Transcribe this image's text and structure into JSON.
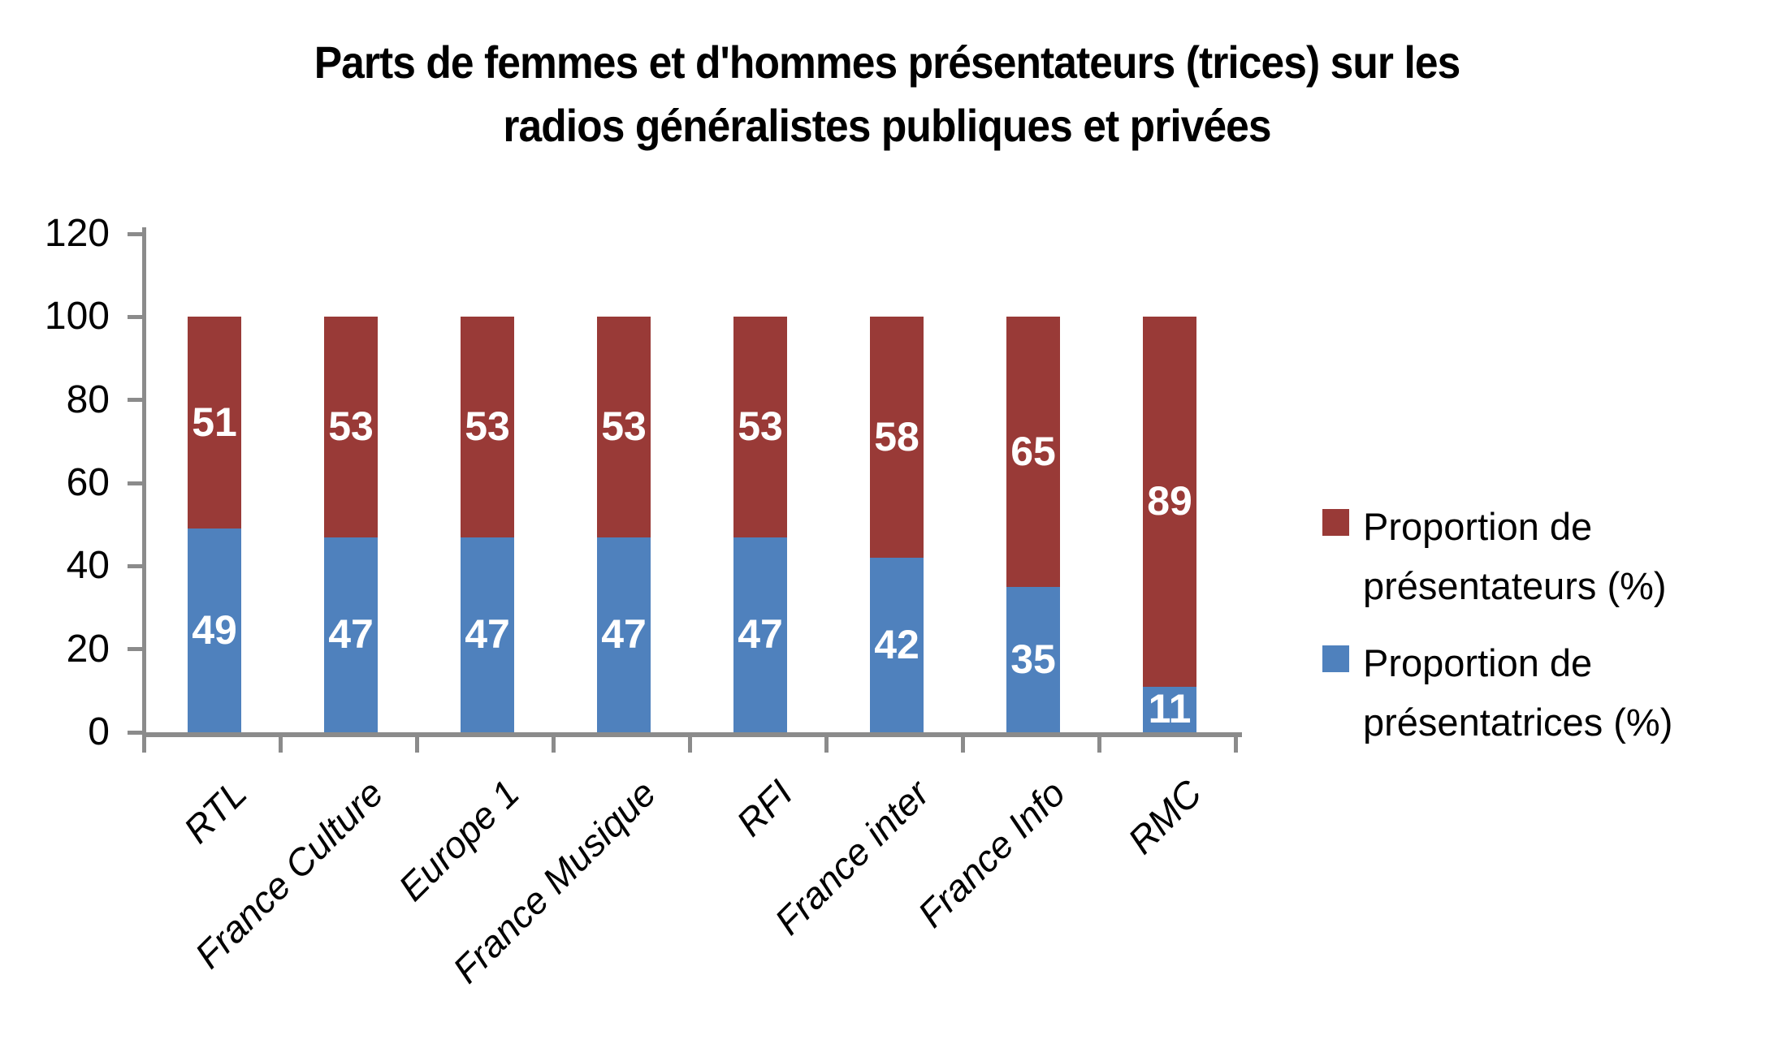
{
  "title": {
    "line1": "Parts de femmes et d'hommes présentateurs (trices) sur les",
    "line2": "radios généralistes publiques et privées"
  },
  "legend": {
    "items": [
      {
        "label": "Proportion de présentateurs (%)",
        "color": "#993A37"
      },
      {
        "label": "Proportion de présentatrices (%)",
        "color": "#4F81BD"
      }
    ]
  },
  "chart_data": {
    "type": "bar",
    "stacked": true,
    "title": "Parts de femmes et d'hommes présentateurs (trices) sur les radios généralistes publiques et privées",
    "categories": [
      "RTL",
      "France Culture",
      "Europe 1",
      "France Musique",
      "RFI",
      "France inter",
      "France Info",
      "RMC"
    ],
    "series": [
      {
        "name": "Proportion de présentatrices (%)",
        "color": "#4F81BD",
        "position": "bottom",
        "values": [
          49,
          47,
          47,
          47,
          47,
          42,
          35,
          11
        ]
      },
      {
        "name": "Proportion de présentateurs (%)",
        "color": "#993A37",
        "position": "top",
        "values": [
          51,
          53,
          53,
          53,
          53,
          58,
          65,
          89
        ]
      }
    ],
    "xlabel": "",
    "ylabel": "",
    "y_ticks": [
      0,
      20,
      40,
      60,
      80,
      100,
      120
    ],
    "ylim": [
      0,
      120
    ],
    "grid": false,
    "legend_position": "right",
    "axis_color": "#8B8B8B",
    "bar_label_color": "#FFFFFF"
  }
}
